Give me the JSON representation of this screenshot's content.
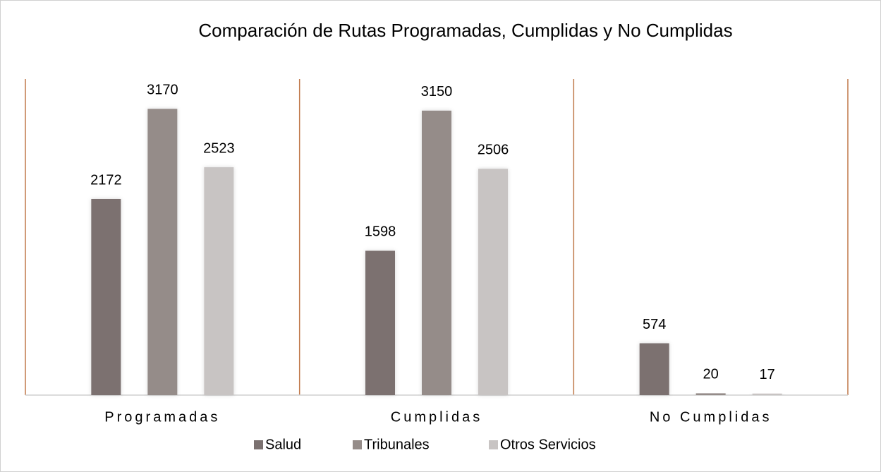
{
  "chart_data": {
    "type": "bar",
    "title": "Comparación de Rutas Programadas, Cumplidas y No Cumplidas",
    "categories": [
      "Programadas",
      "Cumplidas",
      "No Cumplidas"
    ],
    "series": [
      {
        "name": "Salud",
        "color": "#7b7170",
        "values": [
          2172,
          1598,
          574
        ]
      },
      {
        "name": "Tribunales",
        "color": "#958c89",
        "values": [
          3170,
          3150,
          20
        ]
      },
      {
        "name": "Otros Servicios",
        "color": "#c8c4c3",
        "values": [
          2523,
          2506,
          17
        ]
      }
    ],
    "ylim": [
      0,
      3500
    ]
  }
}
